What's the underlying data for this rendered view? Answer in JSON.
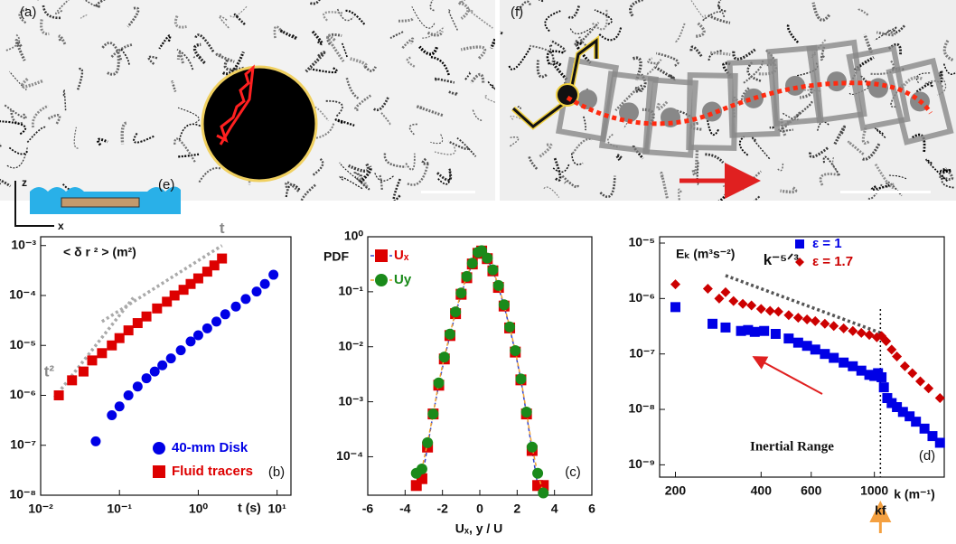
{
  "images": {
    "labels": [
      "(a)",
      "(f)",
      "(e)"
    ],
    "axes": [
      "z",
      "x"
    ]
  },
  "chart_data": [
    {
      "type": "scatter",
      "panel": "(b)",
      "ylabel": "< δ r ² >  (m²)",
      "xlabel": "t (s)",
      "xlog": true,
      "ylog": true,
      "xlim": [
        0.01,
        15
      ],
      "ylim": [
        1e-08,
        0.0015
      ],
      "xticks": [
        {
          "value": 0.01,
          "label": "10⁻²"
        },
        {
          "value": 0.1,
          "label": "10⁻¹"
        },
        {
          "value": 1,
          "label": "10⁰"
        },
        {
          "value": 10,
          "label": "10¹"
        }
      ],
      "yticks": [
        {
          "value": 1e-08,
          "label": "10⁻⁸"
        },
        {
          "value": 1e-07,
          "label": "10⁻⁷"
        },
        {
          "value": 1e-06,
          "label": "10⁻⁶"
        },
        {
          "value": 1e-05,
          "label": "10⁻⁵"
        },
        {
          "value": 0.0001,
          "label": "10⁻⁴"
        },
        {
          "value": 0.001,
          "label": "10⁻³"
        }
      ],
      "series": [
        {
          "name": "40-mm Disk",
          "color": "#0000e6",
          "marker": "circle",
          "x": [
            0.05,
            0.08,
            0.1,
            0.13,
            0.17,
            0.22,
            0.28,
            0.35,
            0.45,
            0.6,
            0.8,
            1,
            1.3,
            1.7,
            2.2,
            3,
            4,
            5.5,
            7,
            9
          ],
          "values": [
            1.2e-07,
            4e-07,
            6e-07,
            1e-06,
            1.5e-06,
            2.2e-06,
            3e-06,
            4e-06,
            5.5e-06,
            8e-06,
            1.2e-05,
            1.6e-05,
            2.2e-05,
            3e-05,
            4.2e-05,
            6e-05,
            8.5e-05,
            0.00012,
            0.00017,
            0.00026
          ]
        },
        {
          "name": "Fluid tracers",
          "color": "#dd0000",
          "marker": "square",
          "x": [
            0.017,
            0.025,
            0.035,
            0.045,
            0.06,
            0.08,
            0.1,
            0.13,
            0.17,
            0.22,
            0.3,
            0.4,
            0.5,
            0.65,
            0.8,
            1,
            1.3,
            1.6,
            2
          ],
          "values": [
            1e-06,
            2e-06,
            3e-06,
            5e-06,
            7e-06,
            1e-05,
            1.4e-05,
            2e-05,
            2.8e-05,
            3.8e-05,
            5.5e-05,
            7.5e-05,
            0.0001,
            0.00013,
            0.00017,
            0.00022,
            0.0003,
            0.0004,
            0.00055
          ]
        }
      ],
      "reference_lines": [
        {
          "label": "t",
          "color": "#aaaaaa",
          "x": [
            0.06,
            2
          ],
          "y": [
            3e-05,
            0.001
          ]
        },
        {
          "label": "t²",
          "color": "#aaaaaa",
          "x": [
            0.015,
            0.15
          ],
          "y": [
            9e-07,
            9e-05
          ]
        }
      ]
    },
    {
      "type": "scatter",
      "panel": "(c)",
      "ylabel": "PDF",
      "xlabel": "Uₓ, y / U",
      "xlog": false,
      "ylog": true,
      "xlim": [
        -6,
        6
      ],
      "ylim": [
        2e-05,
        1
      ],
      "xticks": [
        -6,
        -4,
        -2,
        0,
        2,
        4,
        6
      ],
      "yticks": [
        {
          "value": 0.0001,
          "label": "10⁻⁴"
        },
        {
          "value": 0.001,
          "label": "10⁻³"
        },
        {
          "value": 0.01,
          "label": "10⁻²"
        },
        {
          "value": 0.1,
          "label": "10⁻¹"
        },
        {
          "value": 1,
          "label": "10⁰"
        }
      ],
      "series": [
        {
          "name": "Uₓ",
          "color": "#dd0000",
          "line_color": "#3344cc",
          "marker": "square",
          "x": [
            -3.4,
            -3.1,
            -2.8,
            -2.5,
            -2.2,
            -1.9,
            -1.6,
            -1.3,
            -1.0,
            -0.7,
            -0.4,
            -0.1,
            0.1,
            0.4,
            0.7,
            1.0,
            1.3,
            1.6,
            1.9,
            2.2,
            2.5,
            2.8,
            3.1,
            3.4
          ],
          "values": [
            3e-05,
            4e-05,
            0.00015,
            0.0006,
            0.002,
            0.006,
            0.016,
            0.04,
            0.09,
            0.18,
            0.32,
            0.5,
            0.55,
            0.4,
            0.24,
            0.12,
            0.055,
            0.022,
            0.008,
            0.0025,
            0.0006,
            0.00013,
            3e-05,
            3e-05
          ]
        },
        {
          "name": "Uy",
          "color": "#1a8a1a",
          "line_color": "#f0a030",
          "marker": "circle",
          "x": [
            -3.4,
            -3.1,
            -2.8,
            -2.5,
            -2.2,
            -1.9,
            -1.6,
            -1.3,
            -1.0,
            -0.7,
            -0.4,
            -0.1,
            0.1,
            0.4,
            0.7,
            1.0,
            1.3,
            1.6,
            1.9,
            2.2,
            2.5,
            2.8,
            3.1,
            3.4
          ],
          "values": [
            5e-05,
            6e-05,
            0.00018,
            0.0006,
            0.0022,
            0.0065,
            0.017,
            0.043,
            0.095,
            0.19,
            0.33,
            0.52,
            0.56,
            0.41,
            0.25,
            0.13,
            0.058,
            0.023,
            0.0085,
            0.0026,
            0.00065,
            0.00015,
            5e-05,
            2.2e-05
          ]
        }
      ]
    },
    {
      "type": "scatter",
      "panel": "(d)",
      "ylabel": "Eₖ (m³s⁻²)",
      "xlabel": "k (m⁻¹)",
      "note": "Inertial Range",
      "xlog": true,
      "ylog": true,
      "xlim": [
        176,
        1760
      ],
      "ylim": [
        6e-10,
        1.3e-05
      ],
      "xticks": [
        200,
        400,
        600,
        1000
      ],
      "yticks": [
        {
          "value": 1e-09,
          "label": "10⁻⁹"
        },
        {
          "value": 1e-08,
          "label": "10⁻⁸"
        },
        {
          "value": 1e-07,
          "label": "10⁻⁷"
        },
        {
          "value": 1e-06,
          "label": "10⁻⁶"
        },
        {
          "value": 1e-05,
          "label": "10⁻⁵"
        }
      ],
      "series": [
        {
          "name": "ε = 1",
          "color": "#0000e6",
          "marker": "square",
          "x": [
            200,
            270,
            300,
            340,
            360,
            380,
            410,
            450,
            500,
            540,
            580,
            620,
            670,
            720,
            780,
            840,
            900,
            960,
            1000,
            1030,
            1060,
            1080,
            1110,
            1150,
            1200,
            1260,
            1330,
            1400,
            1500,
            1600,
            1700
          ],
          "values": [
            7e-07,
            3.5e-07,
            3e-07,
            2.6e-07,
            2.7e-07,
            2.5e-07,
            2.6e-07,
            2.3e-07,
            1.9e-07,
            1.6e-07,
            1.4e-07,
            1.2e-07,
            1e-07,
            8.5e-08,
            7e-08,
            6e-08,
            5e-08,
            4.2e-08,
            4e-08,
            4.5e-08,
            3.8e-08,
            2.5e-08,
            1.6e-08,
            1.3e-08,
            1.1e-08,
            9e-09,
            7.5e-09,
            6e-09,
            4.5e-09,
            3.3e-09,
            2.5e-09
          ]
        },
        {
          "name": "ε = 1.7",
          "color": "#cc0000",
          "marker": "diamond",
          "x": [
            200,
            260,
            285,
            300,
            320,
            345,
            370,
            400,
            430,
            460,
            500,
            540,
            580,
            620,
            670,
            720,
            780,
            840,
            900,
            960,
            1020,
            1060,
            1100,
            1150,
            1200,
            1280,
            1360,
            1450,
            1550,
            1700
          ],
          "values": [
            1.8e-06,
            1.5e-06,
            1e-06,
            1.3e-06,
            9e-07,
            8e-07,
            7.5e-07,
            6.5e-07,
            6e-07,
            5.8e-07,
            5e-07,
            4.5e-07,
            4.2e-07,
            3.9e-07,
            3.5e-07,
            3.2e-07,
            2.9e-07,
            2.6e-07,
            2.4e-07,
            2.2e-07,
            2e-07,
            2.1e-07,
            1.7e-07,
            1.2e-07,
            9e-08,
            6e-08,
            4.5e-08,
            3.2e-08,
            2.4e-08,
            1.6e-08
          ]
        }
      ],
      "reference_lines": [
        {
          "label": "k⁻⁵ᐟ³",
          "color": "#555555",
          "x": [
            300,
            1050
          ],
          "y": [
            2.6e-06,
            2.4e-07
          ]
        }
      ],
      "vlines": [
        {
          "label": "kf",
          "x": 1050
        }
      ]
    }
  ]
}
